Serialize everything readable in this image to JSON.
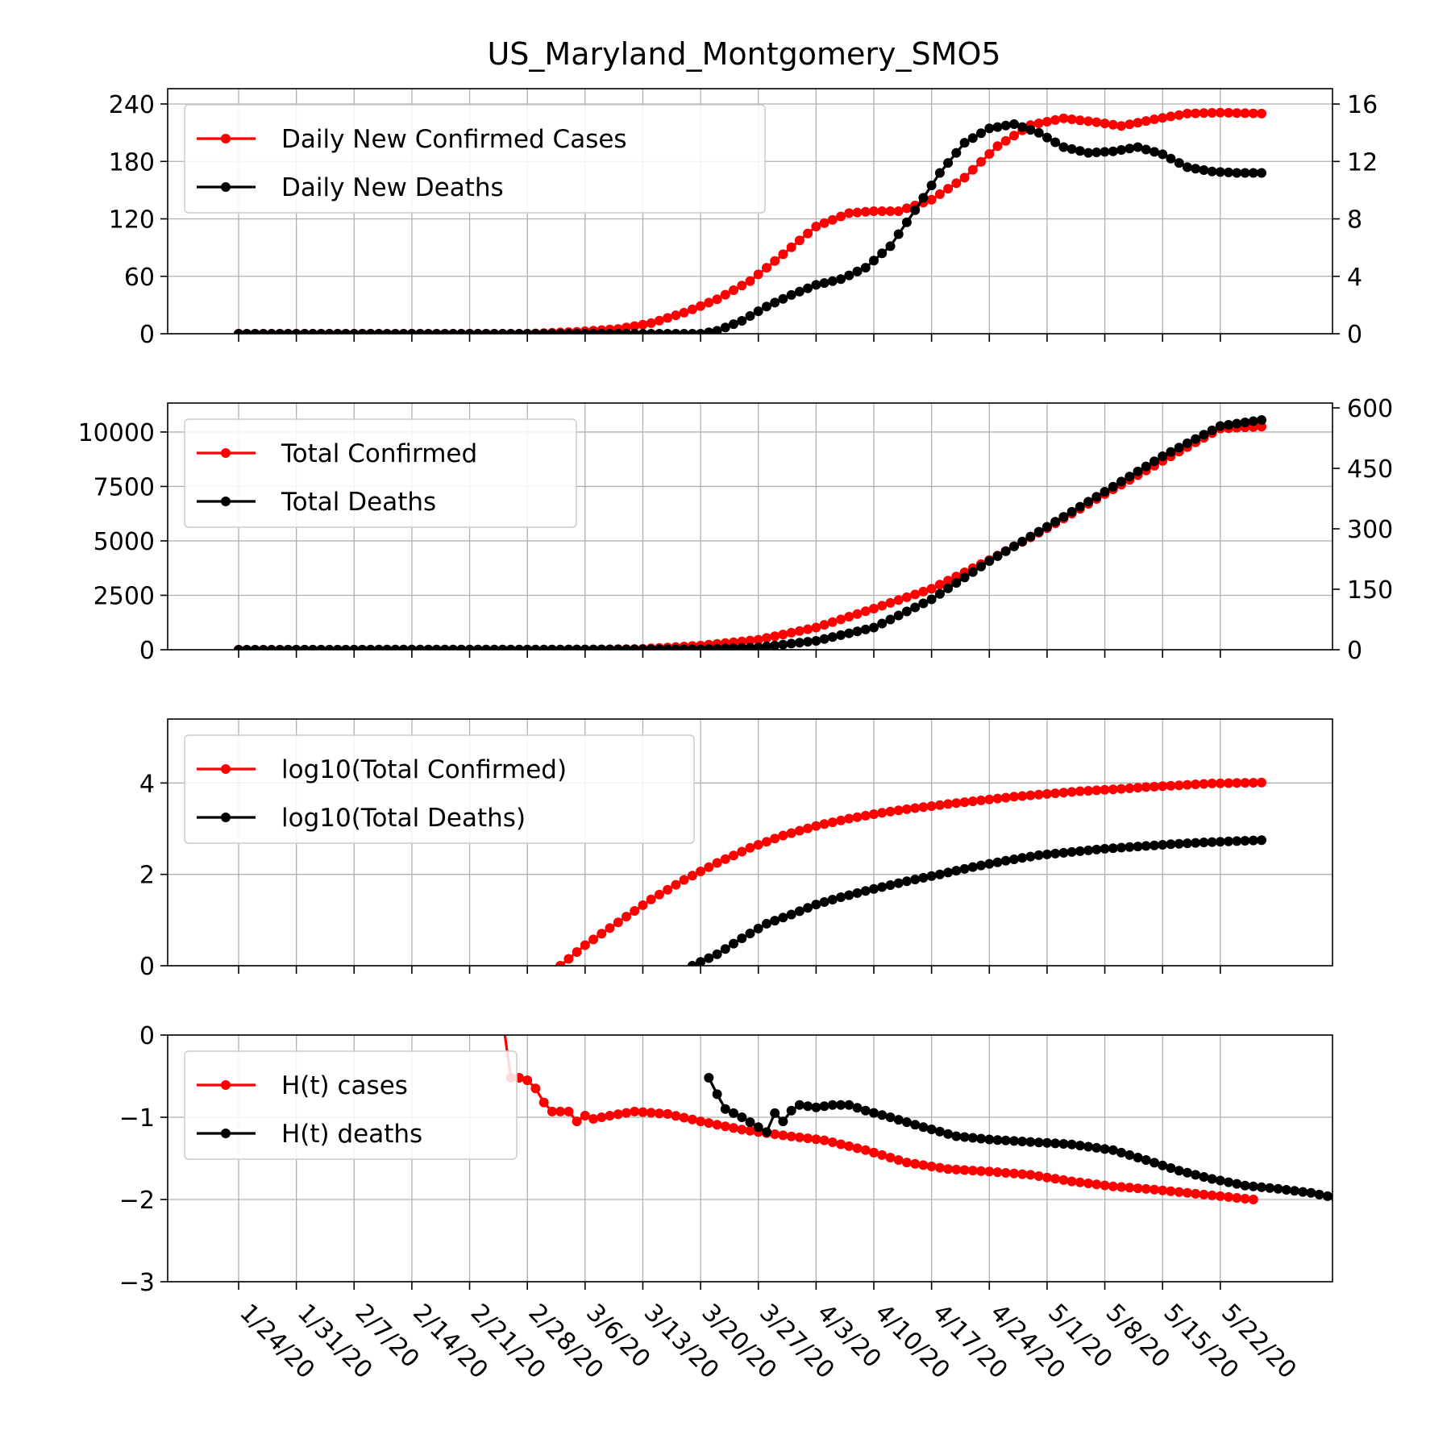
{
  "chart_data": {
    "title": "US_Maryland_Montgomery_SMO5",
    "x_tick_labels": [
      "1/24/20",
      "1/31/20",
      "2/7/20",
      "2/14/20",
      "2/21/20",
      "2/28/20",
      "3/6/20",
      "3/13/20",
      "3/20/20",
      "3/27/20",
      "4/3/20",
      "4/10/20",
      "4/17/20",
      "4/24/20",
      "5/1/20",
      "5/8/20",
      "5/15/20",
      "5/22/20"
    ],
    "x_start_date": "2020-01-24",
    "x_end_date": "2020-05-27",
    "panels": [
      {
        "type": "line",
        "legend": "upper-left",
        "left_axis": {
          "ylim": [
            0,
            256
          ],
          "ticks": [
            0,
            60,
            120,
            180,
            240
          ]
        },
        "right_axis": {
          "ylim": [
            0,
            17.07
          ],
          "ticks": [
            0,
            4,
            8,
            12,
            16
          ]
        },
        "series": [
          {
            "name": "Daily New Confirmed Cases",
            "color": "#ff0000",
            "axis": "left",
            "points": [
              [
                "2020-01-24",
                0
              ],
              [
                "2020-02-28",
                0
              ],
              [
                "2020-03-05",
                2
              ],
              [
                "2020-03-10",
                5
              ],
              [
                "2020-03-14",
                11
              ],
              [
                "2020-03-18",
                22
              ],
              [
                "2020-03-22",
                36
              ],
              [
                "2020-03-26",
                55
              ],
              [
                "2020-03-30",
                83
              ],
              [
                "2020-04-03",
                112
              ],
              [
                "2020-04-07",
                126
              ],
              [
                "2020-04-10",
                128
              ],
              [
                "2020-04-13",
                128
              ],
              [
                "2020-04-17",
                140
              ],
              [
                "2020-04-21",
                163
              ],
              [
                "2020-04-25",
                196
              ],
              [
                "2020-04-29",
                218
              ],
              [
                "2020-05-03",
                225
              ],
              [
                "2020-05-07",
                221
              ],
              [
                "2020-05-10",
                217
              ],
              [
                "2020-05-14",
                224
              ],
              [
                "2020-05-18",
                230
              ],
              [
                "2020-05-22",
                231
              ],
              [
                "2020-05-27",
                230
              ]
            ]
          },
          {
            "name": "Daily New Deaths",
            "color": "#000000",
            "axis": "right",
            "points": [
              [
                "2020-01-24",
                0
              ],
              [
                "2020-03-20",
                0
              ],
              [
                "2020-03-22",
                0.2
              ],
              [
                "2020-03-25",
                0.9
              ],
              [
                "2020-03-28",
                1.9
              ],
              [
                "2020-03-31",
                2.7
              ],
              [
                "2020-04-03",
                3.4
              ],
              [
                "2020-04-06",
                3.8
              ],
              [
                "2020-04-09",
                4.6
              ],
              [
                "2020-04-12",
                6.1
              ],
              [
                "2020-04-15",
                8.6
              ],
              [
                "2020-04-18",
                11.2
              ],
              [
                "2020-04-21",
                13.3
              ],
              [
                "2020-04-24",
                14.3
              ],
              [
                "2020-04-27",
                14.6
              ],
              [
                "2020-04-30",
                14.0
              ],
              [
                "2020-05-03",
                13.0
              ],
              [
                "2020-05-06",
                12.6
              ],
              [
                "2020-05-09",
                12.7
              ],
              [
                "2020-05-12",
                13.0
              ],
              [
                "2020-05-15",
                12.5
              ],
              [
                "2020-05-18",
                11.6
              ],
              [
                "2020-05-21",
                11.3
              ],
              [
                "2020-05-24",
                11.2
              ],
              [
                "2020-05-27",
                11.2
              ]
            ]
          }
        ]
      },
      {
        "type": "line",
        "legend": "upper-left",
        "left_axis": {
          "ylim": [
            0,
            11330
          ],
          "ticks": [
            0,
            2500,
            5000,
            7500,
            10000
          ],
          "tick_labels": [
            "0",
            "2500",
            "5000",
            "7500",
            "10000"
          ]
        },
        "right_axis": {
          "ylim": [
            0,
            612
          ],
          "ticks": [
            0,
            150,
            300,
            450,
            600
          ]
        },
        "series": [
          {
            "name": "Total Confirmed",
            "color": "#ff0000",
            "axis": "left",
            "points": [
              [
                "2020-01-24",
                0
              ],
              [
                "2020-03-06",
                5
              ],
              [
                "2020-03-13",
                40
              ],
              [
                "2020-03-20",
                190
              ],
              [
                "2020-03-27",
                460
              ],
              [
                "2020-04-03",
                1020
              ],
              [
                "2020-04-10",
                1890
              ],
              [
                "2020-04-17",
                2800
              ],
              [
                "2020-04-24",
                4120
              ],
              [
                "2020-05-01",
                5580
              ],
              [
                "2020-05-08",
                7150
              ],
              [
                "2020-05-15",
                8670
              ],
              [
                "2020-05-22",
                10160
              ],
              [
                "2020-05-27",
                10250
              ]
            ]
          },
          {
            "name": "Total Deaths",
            "color": "#000000",
            "axis": "right",
            "points": [
              [
                "2020-01-24",
                0
              ],
              [
                "2020-03-20",
                1
              ],
              [
                "2020-03-27",
                6
              ],
              [
                "2020-04-03",
                22
              ],
              [
                "2020-04-10",
                55
              ],
              [
                "2020-04-17",
                125
              ],
              [
                "2020-04-24",
                220
              ],
              [
                "2020-05-01",
                305
              ],
              [
                "2020-05-08",
                392
              ],
              [
                "2020-05-15",
                480
              ],
              [
                "2020-05-22",
                555
              ],
              [
                "2020-05-27",
                570
              ]
            ]
          }
        ]
      },
      {
        "type": "line",
        "legend": "upper-left",
        "left_axis": {
          "ylim": [
            0,
            5.4
          ],
          "ticks": [
            0,
            2,
            4
          ]
        },
        "series": [
          {
            "name": "log10(Total Confirmed)",
            "color": "#ff0000",
            "axis": "left",
            "points": [
              [
                "2020-03-03",
                0
              ],
              [
                "2020-03-06",
                0.45
              ],
              [
                "2020-03-10",
                0.95
              ],
              [
                "2020-03-14",
                1.45
              ],
              [
                "2020-03-18",
                1.88
              ],
              [
                "2020-03-22",
                2.25
              ],
              [
                "2020-03-26",
                2.58
              ],
              [
                "2020-03-30",
                2.85
              ],
              [
                "2020-04-03",
                3.06
              ],
              [
                "2020-04-07",
                3.22
              ],
              [
                "2020-04-11",
                3.35
              ],
              [
                "2020-04-15",
                3.45
              ],
              [
                "2020-04-19",
                3.54
              ],
              [
                "2020-04-23",
                3.62
              ],
              [
                "2020-04-27",
                3.7
              ],
              [
                "2020-05-01",
                3.76
              ],
              [
                "2020-05-05",
                3.82
              ],
              [
                "2020-05-09",
                3.86
              ],
              [
                "2020-05-13",
                3.91
              ],
              [
                "2020-05-17",
                3.95
              ],
              [
                "2020-05-21",
                3.99
              ],
              [
                "2020-05-27",
                4.01
              ]
            ]
          },
          {
            "name": "log10(Total Deaths)",
            "color": "#000000",
            "axis": "left",
            "points": [
              [
                "2020-03-19",
                0
              ],
              [
                "2020-03-22",
                0.25
              ],
              [
                "2020-03-25",
                0.6
              ],
              [
                "2020-03-28",
                0.92
              ],
              [
                "2020-03-31",
                1.12
              ],
              [
                "2020-04-03",
                1.34
              ],
              [
                "2020-04-06",
                1.5
              ],
              [
                "2020-04-10",
                1.68
              ],
              [
                "2020-04-14",
                1.85
              ],
              [
                "2020-04-18",
                2.0
              ],
              [
                "2020-04-22",
                2.16
              ],
              [
                "2020-04-26",
                2.3
              ],
              [
                "2020-04-30",
                2.42
              ],
              [
                "2020-05-04",
                2.49
              ],
              [
                "2020-05-08",
                2.56
              ],
              [
                "2020-05-12",
                2.61
              ],
              [
                "2020-05-16",
                2.66
              ],
              [
                "2020-05-20",
                2.7
              ],
              [
                "2020-05-27",
                2.75
              ]
            ]
          }
        ]
      },
      {
        "type": "line",
        "legend": "upper-left",
        "left_axis": {
          "ylim": [
            -3,
            0
          ],
          "ticks": [
            -3,
            -2,
            -1,
            0
          ],
          "tick_labels": [
            "−3",
            "−2",
            "−1",
            "0"
          ]
        },
        "series": [
          {
            "name": "H(t) cases",
            "color": "#ff0000",
            "axis": "left",
            "points": [
              [
                "2020-02-25",
                0.2
              ],
              [
                "2020-02-26",
                -0.52
              ],
              [
                "2020-02-27",
                -0.52
              ],
              [
                "2020-02-28",
                -0.55
              ],
              [
                "2020-02-29",
                -0.65
              ],
              [
                "2020-03-01",
                -0.82
              ],
              [
                "2020-03-02",
                -0.93
              ],
              [
                "2020-03-03",
                -0.93
              ],
              [
                "2020-03-04",
                -0.93
              ],
              [
                "2020-03-05",
                -1.05
              ],
              [
                "2020-03-06",
                -0.98
              ],
              [
                "2020-03-07",
                -1.02
              ],
              [
                "2020-03-09",
                -0.98
              ],
              [
                "2020-03-12",
                -0.93
              ],
              [
                "2020-03-16",
                -0.96
              ],
              [
                "2020-03-20",
                -1.05
              ],
              [
                "2020-03-25",
                -1.15
              ],
              [
                "2020-03-30",
                -1.22
              ],
              [
                "2020-04-04",
                -1.28
              ],
              [
                "2020-04-09",
                -1.4
              ],
              [
                "2020-04-14",
                -1.55
              ],
              [
                "2020-04-19",
                -1.63
              ],
              [
                "2020-04-24",
                -1.66
              ],
              [
                "2020-04-29",
                -1.7
              ],
              [
                "2020-05-04",
                -1.78
              ],
              [
                "2020-05-09",
                -1.84
              ],
              [
                "2020-05-14",
                -1.88
              ],
              [
                "2020-05-19",
                -1.93
              ],
              [
                "2020-05-26",
                -2.0
              ]
            ]
          },
          {
            "name": "H(t) deaths",
            "color": "#000000",
            "axis": "left",
            "points": [
              [
                "2020-03-21",
                -0.52
              ],
              [
                "2020-03-22",
                -0.72
              ],
              [
                "2020-03-23",
                -0.9
              ],
              [
                "2020-03-25",
                -1.0
              ],
              [
                "2020-03-27",
                -1.12
              ],
              [
                "2020-03-28",
                -1.18
              ],
              [
                "2020-03-29",
                -0.95
              ],
              [
                "2020-03-30",
                -1.05
              ],
              [
                "2020-03-31",
                -0.92
              ],
              [
                "2020-04-01",
                -0.85
              ],
              [
                "2020-04-03",
                -0.88
              ],
              [
                "2020-04-05",
                -0.85
              ],
              [
                "2020-04-07",
                -0.85
              ],
              [
                "2020-04-09",
                -0.92
              ],
              [
                "2020-04-12",
                -1.0
              ],
              [
                "2020-04-16",
                -1.12
              ],
              [
                "2020-04-20",
                -1.23
              ],
              [
                "2020-04-24",
                -1.27
              ],
              [
                "2020-04-29",
                -1.3
              ],
              [
                "2020-05-04",
                -1.33
              ],
              [
                "2020-05-09",
                -1.4
              ],
              [
                "2020-05-13",
                -1.52
              ],
              [
                "2020-05-17",
                -1.65
              ],
              [
                "2020-05-21",
                -1.75
              ],
              [
                "2020-05-25",
                -1.83
              ],
              [
                "2020-05-29",
                -1.87
              ],
              [
                "2020-06-02",
                -1.92
              ],
              [
                "2020-06-06",
                -2.0
              ],
              [
                "2020-06-10",
                -2.05
              ]
            ]
          }
        ]
      }
    ]
  }
}
